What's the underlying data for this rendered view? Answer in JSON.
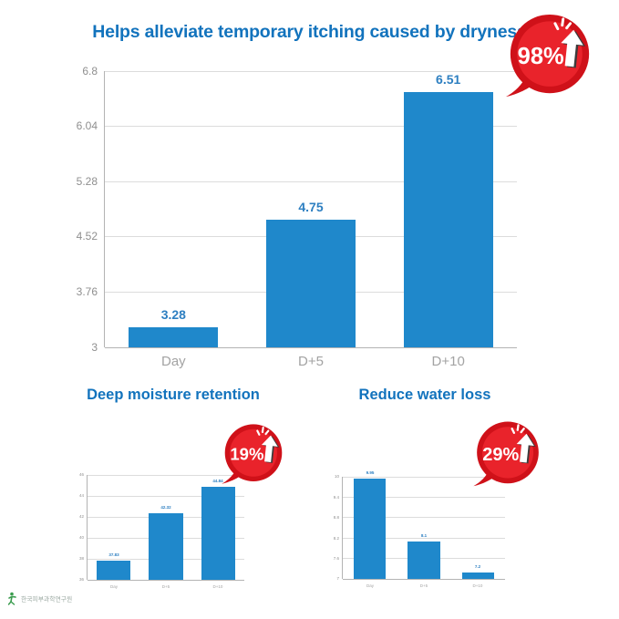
{
  "colors": {
    "bar": "#1f88cb",
    "title": "#1273bd",
    "value_label": "#2d7fc1",
    "axis": "#b3b3b3",
    "grid": "#dcdcdc",
    "tick": "#8f8f8f",
    "category": "#a3a3a3",
    "badge_red": "#e9232b",
    "badge_ring": "#cf1119",
    "logo_green": "#3a9c4e"
  },
  "chart_data": [
    {
      "type": "bar",
      "title": "Helps alleviate temporary itching caused by dryness",
      "badge": "98%",
      "categories": [
        "Day",
        "D+5",
        "D+10"
      ],
      "values": [
        3.28,
        4.75,
        6.51
      ],
      "value_labels": [
        "3.28",
        "4.75",
        "6.51"
      ],
      "yticks": [
        3,
        3.76,
        4.52,
        5.28,
        6.04,
        6.8
      ],
      "ylim": [
        3,
        6.8
      ],
      "grid": true,
      "legend": false
    },
    {
      "type": "bar",
      "title": "Deep moisture retention",
      "badge": "19%",
      "categories": [
        "Day",
        "D+5",
        "D+10"
      ],
      "values": [
        37.83,
        42.32,
        44.84
      ],
      "value_labels": [
        "37.83",
        "42.32",
        "44.84"
      ],
      "yticks": [
        36,
        38,
        40,
        42,
        44,
        46
      ],
      "ylim": [
        36,
        46
      ],
      "grid": true,
      "legend": false
    },
    {
      "type": "bar",
      "title": "Reduce water loss",
      "badge": "29%",
      "categories": [
        "Day",
        "D+5",
        "D+10"
      ],
      "values": [
        9.95,
        8.1,
        7.2
      ],
      "value_labels": [
        "9.95",
        "8.1",
        "7.2"
      ],
      "yticks": [
        7,
        7.6,
        8.2,
        8.8,
        9.4,
        10
      ],
      "ylim": [
        7,
        10
      ],
      "grid": true,
      "legend": false
    }
  ],
  "footer": {
    "logo_text": "한국피부과학연구원"
  }
}
